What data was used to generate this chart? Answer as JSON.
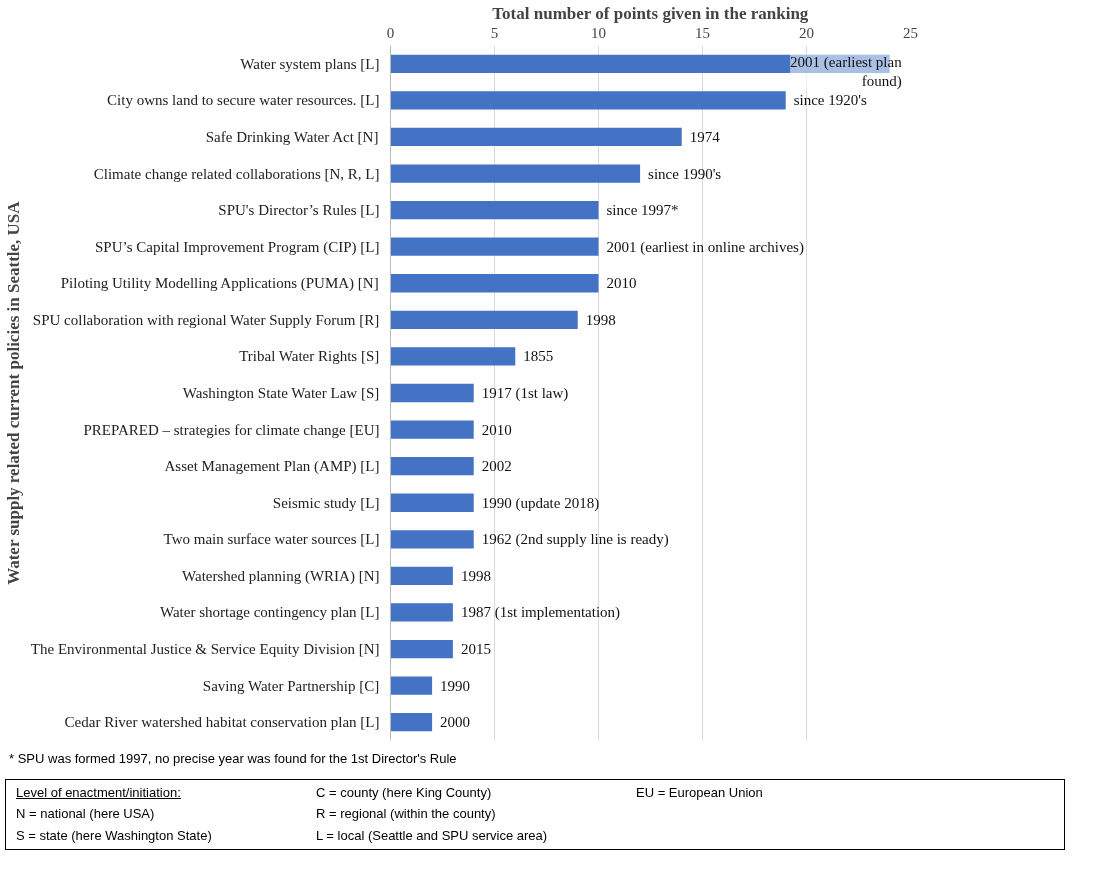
{
  "chart_data": {
    "type": "bar",
    "orientation": "horizontal",
    "xlabel": "Total number of points given in the ranking",
    "ylabel": "Water supply related current policies in Seattle, USA",
    "categories": [
      "Water system plans [L]",
      "City owns land to secure water resources. [L]",
      "Safe Drinking Water Act [N]",
      "Climate change related collaborations [N, R, L]",
      "SPU's Director’s Rules [L]",
      "SPU’s Capital Improvement Program (CIP) [L]",
      "Piloting Utility Modelling Applications (PUMA) [N]",
      "SPU collaboration with regional Water Supply Forum [R]",
      "Tribal Water Rights [S]",
      "Washington State Water Law [S]",
      "PREPARED – strategies for climate change [EU]",
      "Asset Management Plan (AMP) [L]",
      "Seismic study [L]",
      "Two main surface water sources [L]",
      "Watershed planning (WRIA) [N]",
      "Water shortage contingency plan [L]",
      "The Environmental Justice & Service Equity Division [N]",
      "Saving Water Partnership [C]",
      "Cedar River watershed habitat conservation plan [L]"
    ],
    "values": [
      24,
      19,
      14,
      12,
      10,
      10,
      10,
      9,
      6,
      4,
      4,
      4,
      4,
      4,
      3,
      3,
      3,
      2,
      2
    ],
    "color": "#4472c4",
    "xlim": [
      0,
      25
    ],
    "xticks": [
      0,
      5,
      10,
      15,
      20,
      25
    ],
    "grid": "x",
    "annotations": [
      {
        "text": "2001 (earliest plan found)",
        "x": 24,
        "y": "Water system plans [L]"
      },
      {
        "text": "since 1920's",
        "x": 19,
        "y": "City owns land to secure water resources. [L]"
      },
      {
        "text": "1974",
        "x": 14,
        "y": "Safe Drinking Water Act [N]"
      },
      {
        "text": "since 1990's",
        "x": 12,
        "y": "Climate change related collaborations [N, R, L]"
      },
      {
        "text": "since 1997*",
        "x": 10,
        "y": "SPU's Director’s Rules [L]"
      },
      {
        "text": "2001 (earliest in online archives)",
        "x": 10,
        "y": "SPU’s Capital Improvement Program (CIP) [L]"
      },
      {
        "text": "2010",
        "x": 10,
        "y": "Piloting Utility Modelling Applications (PUMA) [N]"
      },
      {
        "text": "1998",
        "x": 9,
        "y": "SPU collaboration with regional Water Supply Forum [R]"
      },
      {
        "text": "1855",
        "x": 6,
        "y": "Tribal Water Rights [S]"
      },
      {
        "text": "1917 (1st law)",
        "x": 4,
        "y": "Washington State Water Law [S]"
      },
      {
        "text": "2010",
        "x": 4,
        "y": "PREPARED – strategies for climate change [EU]"
      },
      {
        "text": "2002",
        "x": 4,
        "y": "Asset Management Plan (AMP) [L]"
      },
      {
        "text": "1990 (update 2018)",
        "x": 4,
        "y": "Seismic study [L]"
      },
      {
        "text": "1962 (2nd supply line is ready)",
        "x": 4,
        "y": "Two main surface water sources [L]"
      },
      {
        "text": "1998",
        "x": 3,
        "y": "Watershed planning (WRIA) [N]"
      },
      {
        "text": "1987 (1st implementation)",
        "x": 3,
        "y": "Water shortage contingency plan [L]"
      },
      {
        "text": "2015",
        "x": 3,
        "y": "The Environmental Justice & Service Equity Division [N]"
      },
      {
        "text": "1990",
        "x": 2,
        "y": "Saving Water Partnership [C]"
      },
      {
        "text": "2000",
        "x": 2,
        "y": "Cedar River watershed habitat conservation plan [L]"
      },
      "* SPU was formed 1997, no precise year was found for the 1st Director's Rule",
      "Level of enactment/initiation:",
      "N = national (here USA)",
      "S = state (here Washington State)",
      "C = county (here King County)",
      "R = regional (within the county)",
      "L = local (Seattle and SPU service area)",
      "EU = European Union"
    ]
  }
}
